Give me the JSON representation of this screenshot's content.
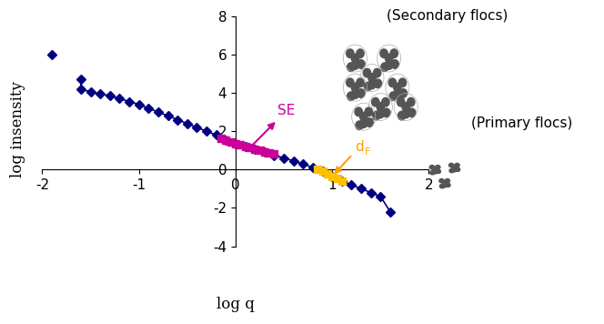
{
  "chart_data": {
    "type": "line",
    "x_label": "log q",
    "y_label": "log insensity",
    "xlim": [
      -2,
      2
    ],
    "ylim": [
      -4,
      8
    ],
    "xticks": [
      -2,
      -1,
      0,
      1,
      2
    ],
    "yticks": [
      -4,
      -2,
      0,
      2,
      4,
      6,
      8
    ],
    "series": [
      {
        "color": "#000080",
        "marker": "diamond",
        "x": [
          -1.9,
          -1.75,
          -1.6,
          -1.6,
          -1.5,
          -1.4,
          -1.3,
          -1.2,
          -1.1,
          -1.0,
          -0.9,
          -0.8,
          -0.7,
          -0.6,
          -0.5,
          -0.4,
          -0.3,
          -0.2,
          -0.1,
          0.0,
          0.1,
          0.2,
          0.3,
          0.4,
          0.5,
          0.6,
          0.7,
          0.8,
          0.9,
          1.0,
          1.1,
          1.2,
          1.3,
          1.4,
          1.5,
          1.6
        ],
        "values": [
          6.0,
          null,
          4.7,
          4.2,
          4.05,
          3.95,
          3.85,
          3.7,
          3.55,
          3.4,
          3.2,
          3.0,
          2.8,
          2.6,
          2.4,
          2.2,
          2.0,
          1.8,
          1.55,
          1.35,
          1.2,
          1.05,
          0.9,
          0.75,
          0.6,
          0.45,
          0.3,
          0.1,
          -0.1,
          -0.35,
          -0.6,
          -0.8,
          -1.0,
          -1.2,
          -1.4,
          -2.2
        ]
      },
      {
        "color": "#cc0099",
        "marker": "square",
        "annotation": "SE",
        "x": [
          -0.15,
          -0.1,
          -0.05,
          0.0,
          0.05,
          0.1,
          0.15,
          0.2,
          0.25,
          0.3,
          0.35,
          0.4
        ],
        "values": [
          1.65,
          1.55,
          1.45,
          1.35,
          1.3,
          1.2,
          1.15,
          1.05,
          1.0,
          0.9,
          0.85,
          0.8
        ]
      },
      {
        "color": "#ffc000",
        "marker": "square",
        "annotation": "dF",
        "x": [
          0.85,
          0.9,
          0.95,
          1.0,
          1.05,
          1.1
        ],
        "values": [
          0.0,
          -0.1,
          -0.2,
          -0.35,
          -0.45,
          -0.6
        ]
      }
    ],
    "annotations": [
      "(Secondary flocs)",
      "(Primary flocs)"
    ]
  }
}
